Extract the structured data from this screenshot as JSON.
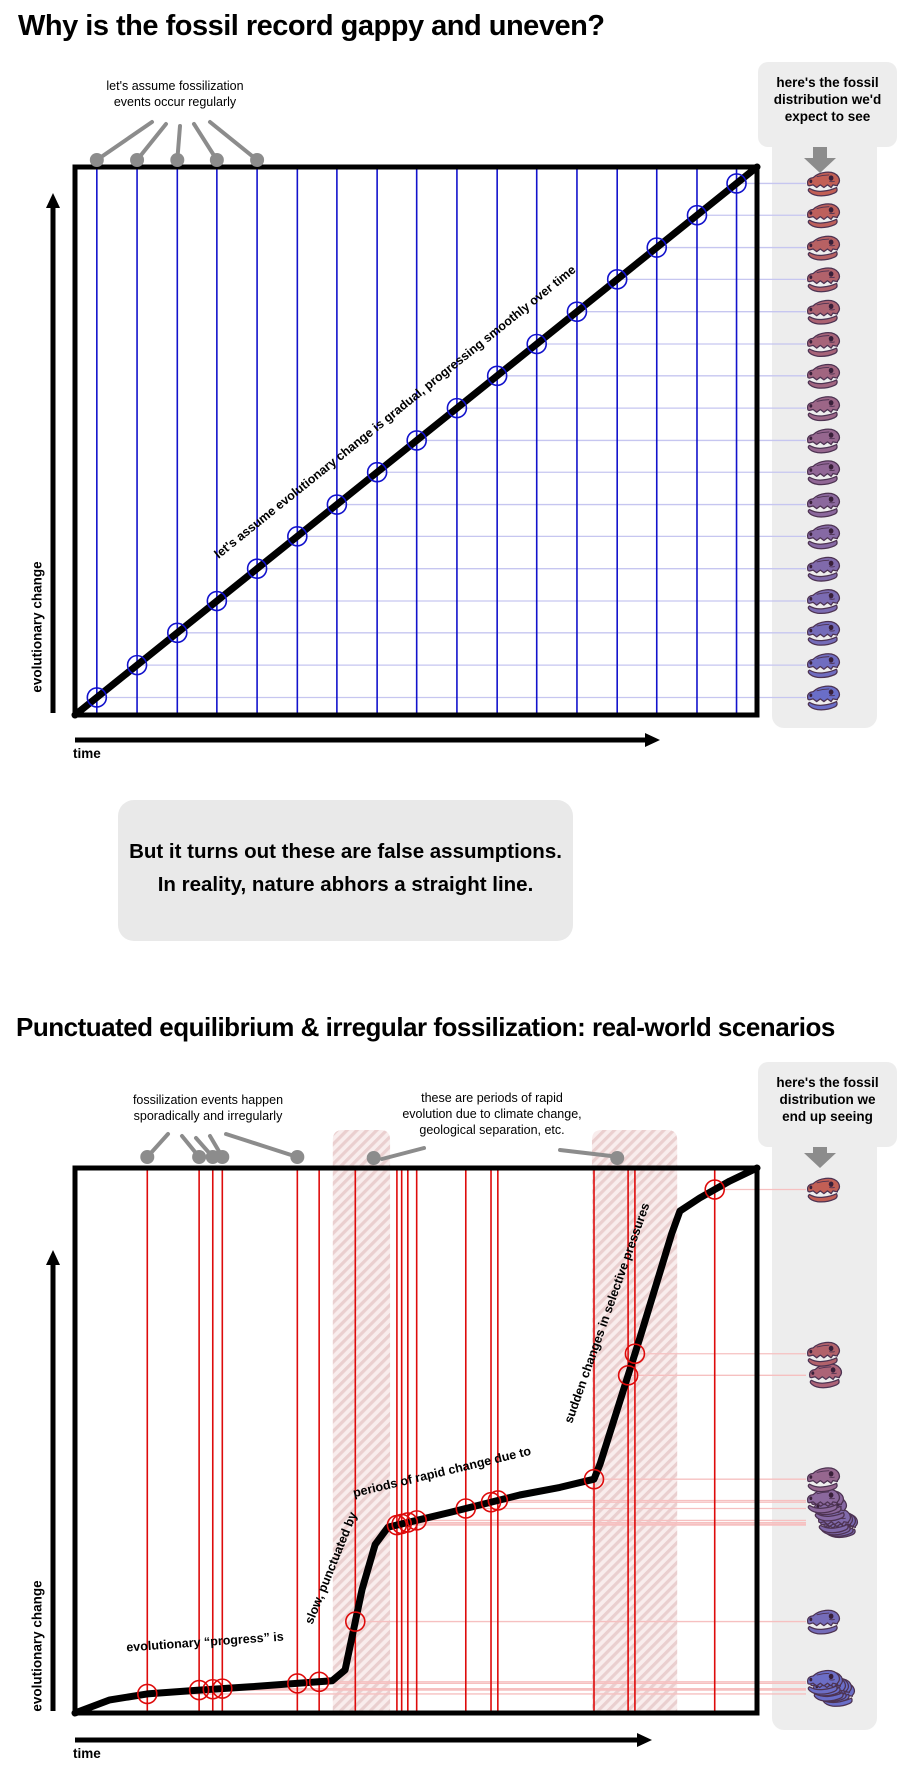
{
  "icons": {
    "fossil": "dinosaur-skull-fossil-icon",
    "callout_arrow": "down-arrow-icon",
    "axis_arrow": "arrow-axis-icon"
  },
  "colors": {
    "blue": "#1212cc",
    "blue_faint": "#c6c6f0",
    "red": "#de0b0b",
    "red_faint": "#f6c0c0",
    "gray": "#8c8c8c",
    "panel": "#ededed",
    "hatch_bg": "#f9eded",
    "hatch_stripe": "#eacfcf",
    "curve": "#000000"
  },
  "interlude": {
    "line1": "But it turns out these are false assumptions.",
    "line2": "In reality, nature abhors a straight line."
  },
  "chart_data": [
    {
      "id": "expected-fossil-record",
      "type": "line",
      "title": "Why is the fossil record gappy and uneven?",
      "xlabel": "time",
      "ylabel": "evolutionary change",
      "x_range": [
        0,
        100
      ],
      "y_range": [
        0,
        100
      ],
      "grid": false,
      "curve_label": "let's assume evolutionary change is gradual, progressing smoothly over time",
      "annotation": {
        "line1": "let's assume fossilization",
        "line2": "events occur regularly"
      },
      "callout": {
        "line1": "here's the fossil",
        "line2": "distribution we'd",
        "line3": "expect to see"
      },
      "curve": [
        [
          0,
          0
        ],
        [
          100,
          100
        ]
      ],
      "event_x": [
        3.2,
        9.1,
        15.0,
        20.8,
        26.7,
        32.6,
        38.4,
        44.3,
        50.1,
        56.0,
        61.9,
        67.7,
        73.6,
        79.5,
        85.3,
        91.2,
        97.0
      ],
      "annotated_events": [
        0,
        1,
        2,
        3,
        4
      ],
      "fossils": [
        {
          "color": "#6a6ec8",
          "dx": 0
        },
        {
          "color": "#706dc0",
          "dx": 0
        },
        {
          "color": "#756cb9",
          "dx": 0
        },
        {
          "color": "#7b6bb2",
          "dx": 0
        },
        {
          "color": "#806aab",
          "dx": 0
        },
        {
          "color": "#8669a4",
          "dx": 0
        },
        {
          "color": "#8b689d",
          "dx": 0
        },
        {
          "color": "#916796",
          "dx": 0
        },
        {
          "color": "#96678f",
          "dx": 0
        },
        {
          "color": "#9c6687",
          "dx": 0
        },
        {
          "color": "#a16580",
          "dx": 0
        },
        {
          "color": "#a76479",
          "dx": 0
        },
        {
          "color": "#ac6372",
          "dx": 0
        },
        {
          "color": "#b2626b",
          "dx": 0
        },
        {
          "color": "#b76163",
          "dx": 0
        },
        {
          "color": "#bd605c",
          "dx": 0
        },
        {
          "color": "#c25f55",
          "dx": 0
        }
      ]
    },
    {
      "id": "observed-fossil-record",
      "type": "line",
      "title": "Punctuated equilibrium & irregular fossilization: real-world scenarios",
      "xlabel": "time",
      "ylabel": "evolutionary change",
      "x_range": [
        0,
        100
      ],
      "y_range": [
        0,
        100
      ],
      "grid": false,
      "curve_labels": {
        "a": "evolutionary “progress” is",
        "b": "slow, punctuated by",
        "c": "periods of rapid change due to",
        "d": "sudden changes in selective pressures"
      },
      "annotation": {
        "line1": "fossilization events happen",
        "line2": "sporadically and irregularly"
      },
      "annotation2": {
        "line1": "these are periods of rapid",
        "line2": "evolution due to climate change,",
        "line3": "geological separation, etc."
      },
      "callout": {
        "line1": "here's the fossil",
        "line2": "distribution we",
        "line3": "end up seeing"
      },
      "curve": [
        [
          0,
          0
        ],
        [
          5.1,
          2.4
        ],
        [
          10.6,
          3.5
        ],
        [
          18.2,
          4.2
        ],
        [
          25.7,
          4.8
        ],
        [
          37.7,
          5.9
        ],
        [
          39.6,
          7.9
        ],
        [
          42.1,
          22.7
        ],
        [
          44,
          30.9
        ],
        [
          45.9,
          34.1
        ],
        [
          55,
          36.8
        ],
        [
          65.2,
          40
        ],
        [
          71.1,
          41.4
        ],
        [
          76.1,
          42.9
        ],
        [
          77,
          45.7
        ],
        [
          82.8,
          68.7
        ],
        [
          87.5,
          88
        ],
        [
          88.7,
          92.1
        ],
        [
          91.6,
          94.5
        ],
        [
          96,
          97.6
        ],
        [
          100,
          100
        ]
      ],
      "event_x": [
        10.6,
        18.2,
        20.2,
        21.6,
        32.6,
        35.8,
        41.1,
        47.2,
        47.9,
        48.8,
        50.1,
        57.3,
        61.0,
        62.0,
        76.1,
        81.1,
        82.1,
        93.8
      ],
      "annotated_events": [
        0,
        1,
        2,
        3,
        4
      ],
      "rapid_bands": [
        [
          37.8,
          46.2
        ],
        [
          75.8,
          88.3
        ]
      ],
      "band_dot_x": [
        43.8,
        79.5
      ],
      "fossils": [
        {
          "color": "#6a6ec8",
          "dx": 15
        },
        {
          "color": "#6a6ec8",
          "dx": 12
        },
        {
          "color": "#6a6ec8",
          "dx": 9
        },
        {
          "color": "#6a6ec8",
          "dx": 6
        },
        {
          "color": "#6a6ec8",
          "dx": 3
        },
        {
          "color": "#6c6ec6",
          "dx": 0
        },
        {
          "color": "#756cb9",
          "dx": 0
        },
        {
          "color": "#7b6bb2",
          "dx": 18
        },
        {
          "color": "#7b6bb2",
          "dx": 16
        },
        {
          "color": "#806aab",
          "dx": 13
        },
        {
          "color": "#806aab",
          "dx": 11
        },
        {
          "color": "#8669a4",
          "dx": 7
        },
        {
          "color": "#8b689d",
          "dx": 4
        },
        {
          "color": "#8b689d",
          "dx": 0
        },
        {
          "color": "#96678f",
          "dx": 0
        },
        {
          "color": "#ac6377",
          "dx": 2
        },
        {
          "color": "#b2626b",
          "dx": 0
        },
        {
          "color": "#c25f55",
          "dx": 0
        }
      ]
    }
  ]
}
